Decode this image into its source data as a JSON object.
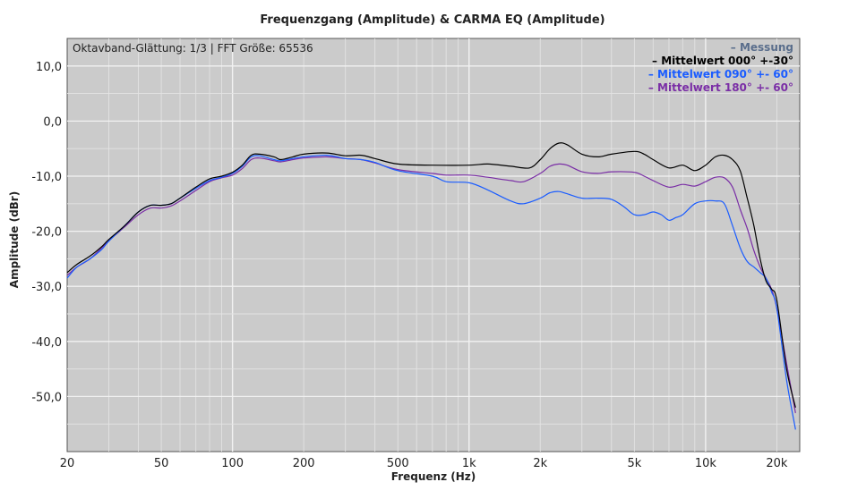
{
  "chart_data": {
    "type": "line",
    "title": "Frequenzgang (Amplitude) & CARMA EQ (Amplitude)",
    "xlabel": "Frequenz (Hz)",
    "ylabel": "Amplitude (dBr)",
    "x_scale": "log",
    "xlim": [
      20,
      25000
    ],
    "ylim": [
      -60,
      15
    ],
    "grid": true,
    "info_text": "Oktavband-Glättung: 1/3 | FFT Größe: 65536",
    "x_ticks": [
      {
        "value": 20,
        "label": "20"
      },
      {
        "value": 50,
        "label": "50"
      },
      {
        "value": 100,
        "label": "100"
      },
      {
        "value": 200,
        "label": "200"
      },
      {
        "value": 500,
        "label": "500"
      },
      {
        "value": 1000,
        "label": "1k"
      },
      {
        "value": 2000,
        "label": "2k"
      },
      {
        "value": 5000,
        "label": "5k"
      },
      {
        "value": 10000,
        "label": "10k"
      },
      {
        "value": 20000,
        "label": "20k"
      }
    ],
    "y_ticks": [
      {
        "value": 10,
        "label": "10,0"
      },
      {
        "value": 0,
        "label": "0,0"
      },
      {
        "value": -10,
        "label": "-10,0"
      },
      {
        "value": -20,
        "label": "-20,0"
      },
      {
        "value": -30,
        "label": "-30,0"
      },
      {
        "value": -40,
        "label": "-40,0"
      },
      {
        "value": -50,
        "label": "-50,0"
      }
    ],
    "legend_position": "top-right",
    "legend": [
      {
        "label": "– Messung",
        "color": "#5a6e8c"
      },
      {
        "label": "– Mittelwert 000° +-30°",
        "color": "#000000"
      },
      {
        "label": "– Mittelwert 090° +- 60°",
        "color": "#1a5cff"
      },
      {
        "label": "– Mittelwert 180° +- 60°",
        "color": "#7a2ea6"
      }
    ],
    "series": [
      {
        "name": "Mittelwert 000° +-30°",
        "color": "#000000",
        "points": [
          [
            20,
            -27.5
          ],
          [
            22,
            -26
          ],
          [
            25,
            -24.5
          ],
          [
            28,
            -22.8
          ],
          [
            30,
            -21.5
          ],
          [
            35,
            -19
          ],
          [
            40,
            -16.5
          ],
          [
            45,
            -15.3
          ],
          [
            50,
            -15.3
          ],
          [
            55,
            -15
          ],
          [
            60,
            -14
          ],
          [
            70,
            -12
          ],
          [
            80,
            -10.5
          ],
          [
            90,
            -10
          ],
          [
            100,
            -9.3
          ],
          [
            110,
            -8
          ],
          [
            120,
            -6.2
          ],
          [
            130,
            -6
          ],
          [
            150,
            -6.5
          ],
          [
            160,
            -7
          ],
          [
            180,
            -6.5
          ],
          [
            200,
            -6
          ],
          [
            250,
            -5.8
          ],
          [
            300,
            -6.3
          ],
          [
            350,
            -6.2
          ],
          [
            400,
            -6.8
          ],
          [
            500,
            -7.8
          ],
          [
            700,
            -8
          ],
          [
            1000,
            -8
          ],
          [
            1200,
            -7.8
          ],
          [
            1500,
            -8.2
          ],
          [
            1800,
            -8.5
          ],
          [
            2000,
            -7
          ],
          [
            2200,
            -5
          ],
          [
            2400,
            -4
          ],
          [
            2600,
            -4.3
          ],
          [
            3000,
            -6
          ],
          [
            3500,
            -6.5
          ],
          [
            4000,
            -6
          ],
          [
            5000,
            -5.5
          ],
          [
            5500,
            -6
          ],
          [
            6000,
            -7
          ],
          [
            7000,
            -8.5
          ],
          [
            8000,
            -8
          ],
          [
            9000,
            -9
          ],
          [
            10000,
            -8
          ],
          [
            11000,
            -6.5
          ],
          [
            12000,
            -6.2
          ],
          [
            13000,
            -7
          ],
          [
            14000,
            -9
          ],
          [
            15000,
            -14
          ],
          [
            16000,
            -19
          ],
          [
            17000,
            -25
          ],
          [
            18000,
            -29
          ],
          [
            19000,
            -30.5
          ],
          [
            20000,
            -32.5
          ],
          [
            22000,
            -45
          ],
          [
            24000,
            -52
          ]
        ]
      },
      {
        "name": "Mittelwert 090° +- 60°",
        "color": "#1a5cff",
        "points": [
          [
            20,
            -28.5
          ],
          [
            22,
            -26.5
          ],
          [
            25,
            -25
          ],
          [
            28,
            -23.3
          ],
          [
            30,
            -21.8
          ],
          [
            35,
            -19
          ],
          [
            40,
            -16.5
          ],
          [
            45,
            -15.3
          ],
          [
            50,
            -15.3
          ],
          [
            55,
            -15
          ],
          [
            60,
            -14
          ],
          [
            70,
            -12.2
          ],
          [
            80,
            -10.8
          ],
          [
            90,
            -10.2
          ],
          [
            100,
            -9.5
          ],
          [
            110,
            -8.2
          ],
          [
            120,
            -6.5
          ],
          [
            130,
            -6.3
          ],
          [
            150,
            -7
          ],
          [
            160,
            -7.2
          ],
          [
            180,
            -6.8
          ],
          [
            200,
            -6.5
          ],
          [
            250,
            -6.2
          ],
          [
            300,
            -6.8
          ],
          [
            350,
            -7
          ],
          [
            400,
            -7.5
          ],
          [
            500,
            -9
          ],
          [
            700,
            -10
          ],
          [
            800,
            -11
          ],
          [
            1000,
            -11.2
          ],
          [
            1200,
            -12.5
          ],
          [
            1500,
            -14.5
          ],
          [
            1700,
            -15
          ],
          [
            2000,
            -14
          ],
          [
            2200,
            -13
          ],
          [
            2400,
            -12.8
          ],
          [
            2600,
            -13.2
          ],
          [
            3000,
            -14
          ],
          [
            3500,
            -14
          ],
          [
            4000,
            -14.2
          ],
          [
            4500,
            -15.5
          ],
          [
            5000,
            -17
          ],
          [
            5500,
            -17
          ],
          [
            6000,
            -16.5
          ],
          [
            6500,
            -17
          ],
          [
            7000,
            -18
          ],
          [
            7500,
            -17.5
          ],
          [
            8000,
            -17
          ],
          [
            9000,
            -15
          ],
          [
            10000,
            -14.5
          ],
          [
            11000,
            -14.5
          ],
          [
            12000,
            -15
          ],
          [
            13000,
            -19
          ],
          [
            14000,
            -23
          ],
          [
            15000,
            -25.5
          ],
          [
            16000,
            -26.5
          ],
          [
            17000,
            -27.5
          ],
          [
            18000,
            -28.5
          ],
          [
            19000,
            -31
          ],
          [
            20000,
            -34
          ],
          [
            22000,
            -47
          ],
          [
            24000,
            -56
          ]
        ]
      },
      {
        "name": "Mittelwert 180° +- 60°",
        "color": "#7a2ea6",
        "points": [
          [
            20,
            -28
          ],
          [
            22,
            -26.5
          ],
          [
            25,
            -25
          ],
          [
            28,
            -23
          ],
          [
            30,
            -21.7
          ],
          [
            35,
            -19.2
          ],
          [
            40,
            -17
          ],
          [
            45,
            -15.8
          ],
          [
            50,
            -15.8
          ],
          [
            55,
            -15.4
          ],
          [
            60,
            -14.5
          ],
          [
            70,
            -12.6
          ],
          [
            80,
            -11
          ],
          [
            90,
            -10.3
          ],
          [
            100,
            -9.8
          ],
          [
            110,
            -8.6
          ],
          [
            120,
            -7
          ],
          [
            130,
            -6.7
          ],
          [
            150,
            -7.2
          ],
          [
            160,
            -7.4
          ],
          [
            180,
            -7
          ],
          [
            200,
            -6.7
          ],
          [
            250,
            -6.5
          ],
          [
            300,
            -6.8
          ],
          [
            350,
            -7
          ],
          [
            400,
            -7.6
          ],
          [
            500,
            -8.8
          ],
          [
            700,
            -9.5
          ],
          [
            800,
            -9.8
          ],
          [
            1000,
            -9.8
          ],
          [
            1200,
            -10.2
          ],
          [
            1500,
            -10.8
          ],
          [
            1700,
            -11
          ],
          [
            2000,
            -9.5
          ],
          [
            2200,
            -8.2
          ],
          [
            2400,
            -7.8
          ],
          [
            2600,
            -8
          ],
          [
            3000,
            -9.2
          ],
          [
            3500,
            -9.5
          ],
          [
            4000,
            -9.2
          ],
          [
            5000,
            -9.3
          ],
          [
            5500,
            -10
          ],
          [
            6000,
            -10.8
          ],
          [
            7000,
            -12
          ],
          [
            8000,
            -11.5
          ],
          [
            9000,
            -11.8
          ],
          [
            10000,
            -11
          ],
          [
            11000,
            -10.2
          ],
          [
            12000,
            -10.3
          ],
          [
            13000,
            -12
          ],
          [
            14000,
            -16
          ],
          [
            15000,
            -19.5
          ],
          [
            16000,
            -23.5
          ],
          [
            17000,
            -26.5
          ],
          [
            18000,
            -28.5
          ],
          [
            19000,
            -30.5
          ],
          [
            20000,
            -34
          ],
          [
            22000,
            -44
          ],
          [
            24000,
            -53
          ]
        ]
      }
    ]
  }
}
